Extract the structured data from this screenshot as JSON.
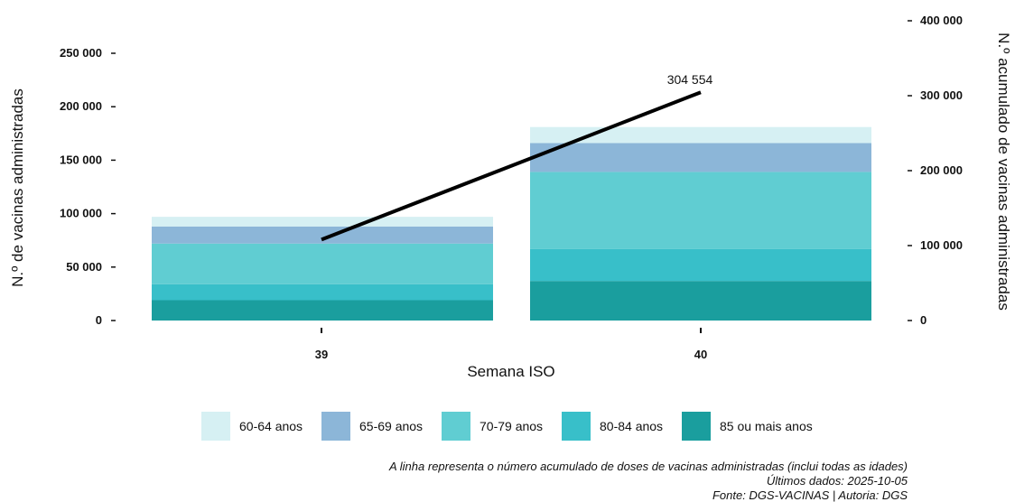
{
  "chart_data": {
    "type": "bar",
    "stacked": true,
    "categories": [
      "39",
      "40"
    ],
    "xlabel": "Semana ISO",
    "ylabel": "N.º de vacinas administradas",
    "ylim": [
      0,
      260000
    ],
    "yticks": [
      0,
      50000,
      100000,
      150000,
      200000,
      250000
    ],
    "ytick_labels": [
      "0",
      "50 000",
      "100 000",
      "150 000",
      "200 000",
      "250 000"
    ],
    "y2label": "N.º acumulado de vacinas administradas",
    "y2lim": [
      0,
      400000
    ],
    "y2ticks": [
      0,
      100000,
      200000,
      300000,
      400000
    ],
    "y2tick_labels": [
      "0",
      "100 000",
      "200 000",
      "300 000",
      "400 000"
    ],
    "series": [
      {
        "name": "85 ou mais anos",
        "color": "#1a9e9e",
        "values": [
          19000,
          37000
        ]
      },
      {
        "name": "80-84 anos",
        "color": "#38bfc9",
        "values": [
          15000,
          30000
        ]
      },
      {
        "name": "70-79 anos",
        "color": "#60cdd2",
        "values": [
          38000,
          72000
        ]
      },
      {
        "name": "65-69 anos",
        "color": "#8cb6d8",
        "values": [
          16000,
          27000
        ]
      },
      {
        "name": "60-64 anos",
        "color": "#d6f0f3",
        "values": [
          9000,
          15000
        ]
      }
    ],
    "line": {
      "axis": "secondary",
      "color": "#000000",
      "values": [
        108000,
        304554
      ],
      "labels": [
        "",
        "304 554"
      ]
    },
    "legend": {
      "placement": "bottom",
      "items": [
        "60-64 anos",
        "65-69 anos",
        "70-79 anos",
        "80-84 anos",
        "85 ou mais anos"
      ]
    },
    "grid": false
  },
  "caption": {
    "line1": "A linha representa o número acumulado de doses de vacinas administradas (inclui todas as idades)",
    "line2": "Últimos dados: 2025-10-05",
    "line3": "Fonte: DGS-VACINAS | Autoria: DGS"
  }
}
